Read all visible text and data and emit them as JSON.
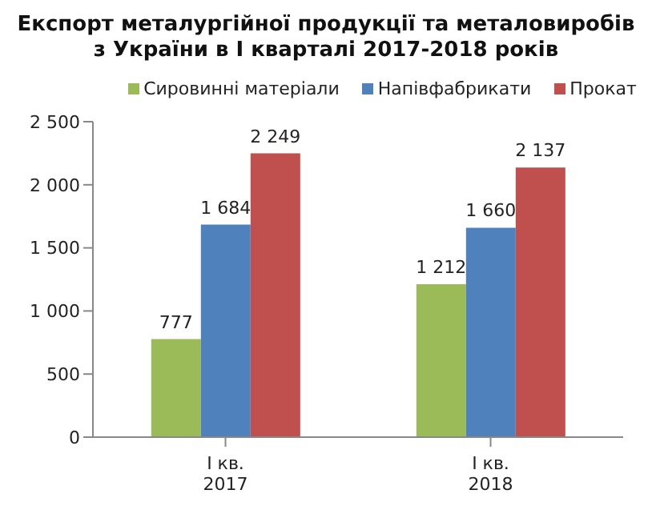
{
  "chart_data": {
    "type": "bar",
    "title": "Експорт металургійної продукції та металовиробів з України в I кварталі 2017-2018 років",
    "categories": [
      "I кв. 2017",
      "I кв. 2018"
    ],
    "series": [
      {
        "name": "Сировинні матеріали",
        "color": "#9bbb59",
        "values": [
          777,
          1212
        ],
        "value_labels": [
          "777",
          "1 212"
        ]
      },
      {
        "name": "Напівфабрикати",
        "color": "#4f81bd",
        "values": [
          1684,
          1660
        ],
        "value_labels": [
          "1 684",
          "1 660"
        ]
      },
      {
        "name": "Прокат",
        "color": "#c0504d",
        "values": [
          2249,
          2137
        ],
        "value_labels": [
          "2 249",
          "2 137"
        ]
      }
    ],
    "ylim": [
      0,
      2500
    ],
    "yticks": [
      {
        "value": 0,
        "label": "0"
      },
      {
        "value": 500,
        "label": "500"
      },
      {
        "value": 1000,
        "label": "1 000"
      },
      {
        "value": 1500,
        "label": "1 500"
      },
      {
        "value": 2000,
        "label": "2 000"
      },
      {
        "value": 2500,
        "label": "2 500"
      }
    ],
    "grid": false,
    "legend": "top"
  }
}
